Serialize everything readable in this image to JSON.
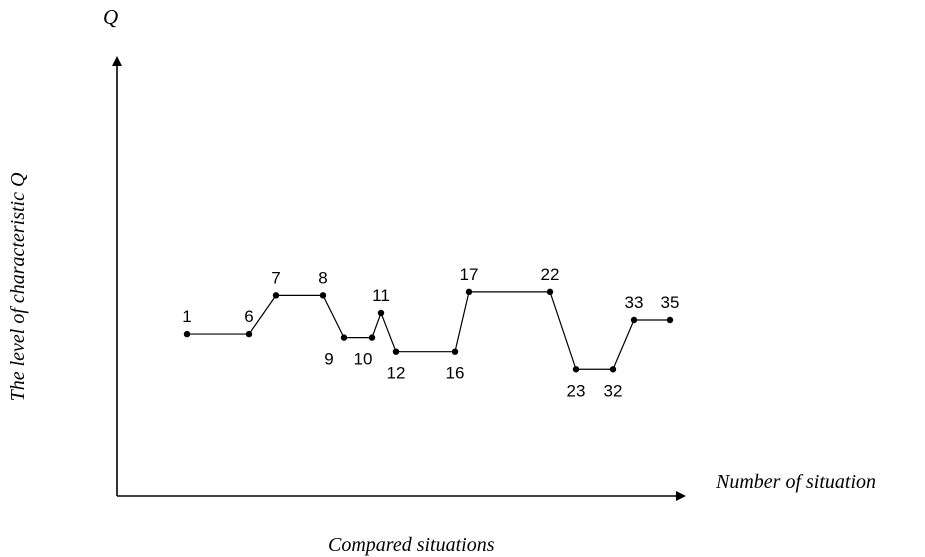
{
  "chart_data": {
    "type": "line",
    "x_axis_label": "Number of situation",
    "y_axis_label": "The level of characteristic Q",
    "y_axis_symbol": "Q",
    "caption": "Compared situations",
    "grid": false,
    "x_ticks": false,
    "y_ticks": false,
    "points": [
      {
        "label": "1",
        "y": 4.6,
        "label_pos": "above"
      },
      {
        "label": "6",
        "y": 4.6,
        "label_pos": "above"
      },
      {
        "label": "7",
        "y": 5.7,
        "label_pos": "above"
      },
      {
        "label": "8",
        "y": 5.7,
        "label_pos": "above"
      },
      {
        "label": "9",
        "y": 4.5,
        "label_pos": "below"
      },
      {
        "label": "10",
        "y": 4.5,
        "label_pos": "below"
      },
      {
        "label": "11",
        "y": 5.2,
        "label_pos": "above"
      },
      {
        "label": "12",
        "y": 4.1,
        "label_pos": "below"
      },
      {
        "label": "16",
        "y": 4.1,
        "label_pos": "below"
      },
      {
        "label": "17",
        "y": 5.8,
        "label_pos": "above"
      },
      {
        "label": "22",
        "y": 5.8,
        "label_pos": "above"
      },
      {
        "label": "23",
        "y": 3.6,
        "label_pos": "below"
      },
      {
        "label": "32",
        "y": 3.6,
        "label_pos": "below"
      },
      {
        "label": "33",
        "y": 5.0,
        "label_pos": "above"
      },
      {
        "label": "35",
        "y": 5.0,
        "label_pos": "above"
      }
    ]
  }
}
